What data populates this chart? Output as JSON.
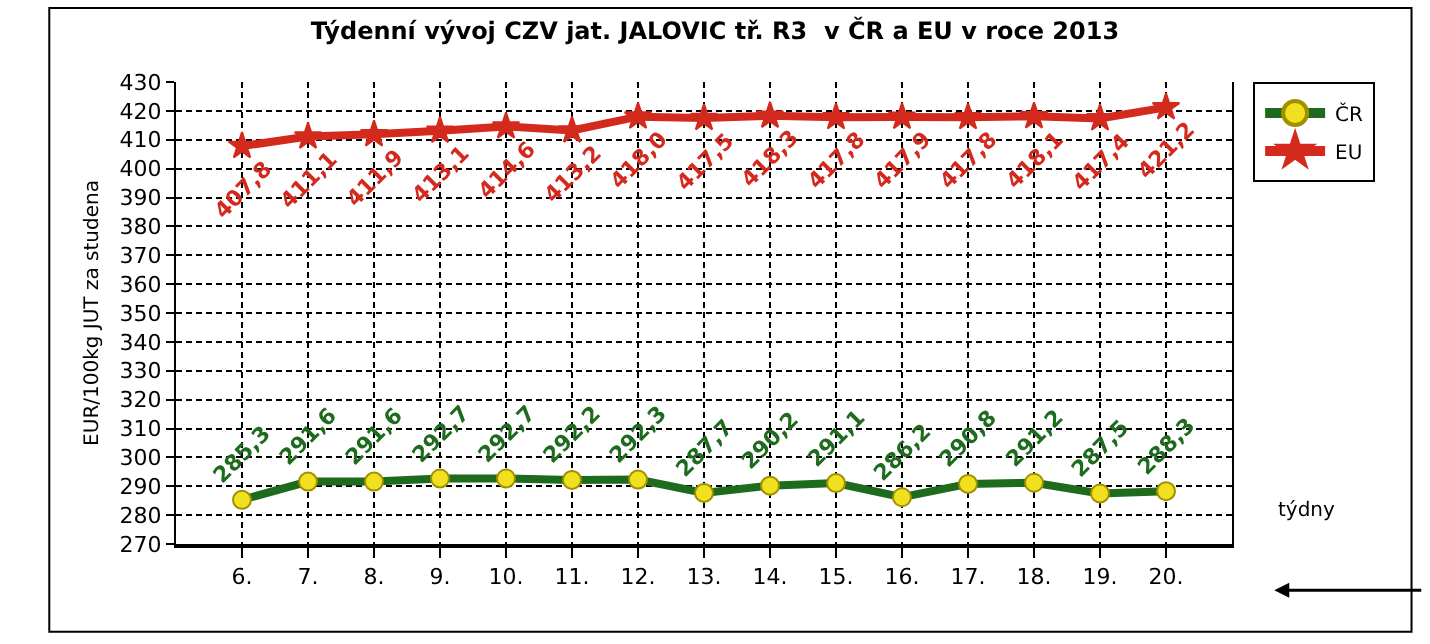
{
  "chart_data": {
    "type": "line",
    "title": "Týdenní vývoj CZV jat. JALOVIC tř. R3  v ČR a EU v roce 2013",
    "xlabel": "týdny",
    "ylabel": "EUR/100kg JUT za studena",
    "categories": [
      "6.",
      "7.",
      "8.",
      "9.",
      "10.",
      "11.",
      "12.",
      "13.",
      "14.",
      "15.",
      "16.",
      "17.",
      "18.",
      "19.",
      "20.",
      null
    ],
    "series": [
      {
        "name": "ČR",
        "color": "#1e6b1e",
        "marker": "circle",
        "values": [
          285.3,
          291.6,
          291.6,
          292.7,
          292.7,
          292.2,
          292.3,
          287.7,
          290.2,
          291.1,
          286.2,
          290.8,
          291.2,
          287.5,
          288.3,
          null
        ],
        "value_labels": [
          "285,3",
          "291,6",
          "291,6",
          "292,7",
          "292,7",
          "292,2",
          "292,3",
          "287,7",
          "290,2",
          "291,1",
          "286,2",
          "290,8",
          "291,2",
          "287,5",
          "288,3",
          null
        ]
      },
      {
        "name": "EU",
        "color": "#d42a1e",
        "marker": "star",
        "values": [
          407.8,
          411.1,
          411.9,
          413.1,
          414.6,
          413.2,
          418.0,
          417.5,
          418.3,
          417.8,
          417.9,
          417.8,
          418.1,
          417.4,
          421.2,
          null
        ],
        "value_labels": [
          "407,8",
          "411,1",
          "411,9",
          "413,1",
          "414,6",
          "413,2",
          "418,0",
          "417,5",
          "418,3",
          "417,8",
          "417,9",
          "417,8",
          "418,1",
          "417,4",
          "421,2",
          null
        ]
      }
    ],
    "ylim": [
      270,
      430
    ],
    "yticks": [
      270,
      280,
      290,
      300,
      310,
      320,
      330,
      340,
      350,
      360,
      370,
      380,
      390,
      400,
      410,
      420,
      430
    ],
    "grid": true,
    "legend": "right"
  }
}
